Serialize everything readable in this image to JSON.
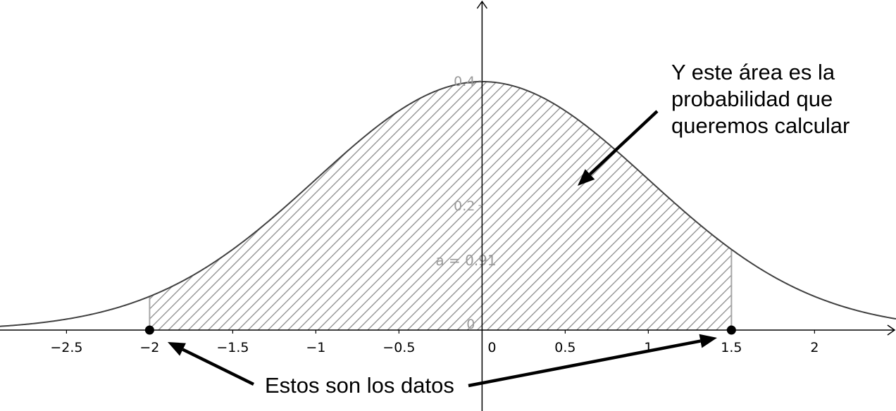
{
  "chart_data": {
    "type": "area",
    "function": "standard normal density",
    "x_ticks": [
      "-2.5",
      "-2",
      "-1.5",
      "-1",
      "-0.5",
      "0",
      "0.5",
      "1",
      "1.5",
      "2"
    ],
    "x_tick_values": [
      -2.5,
      -2,
      -1.5,
      -1,
      -0.5,
      0,
      0.5,
      1,
      1.5,
      2
    ],
    "y_ticks": [
      {
        "value": 0.4,
        "label": "0.4"
      },
      {
        "value": 0.2,
        "label": "0.2"
      }
    ],
    "origin_label": "0",
    "xlim": [
      -2.9,
      2.49
    ],
    "ylim": [
      -0.13,
      0.53
    ],
    "shaded_interval": [
      -2,
      1.5
    ],
    "area_label": "a = 0.91",
    "points": [
      {
        "x": -2,
        "y": 0
      },
      {
        "x": 1.5,
        "y": 0
      }
    ],
    "annotations": {
      "area_lines": [
        "Y este área es la",
        "probabilidad que",
        "queremos calcular"
      ],
      "data_label": "Estos son los datos"
    }
  },
  "colors": {
    "curve": "#404040",
    "hatch": "#8c8c8c",
    "boundary": "#a6a6a6",
    "axis": "#000000"
  }
}
